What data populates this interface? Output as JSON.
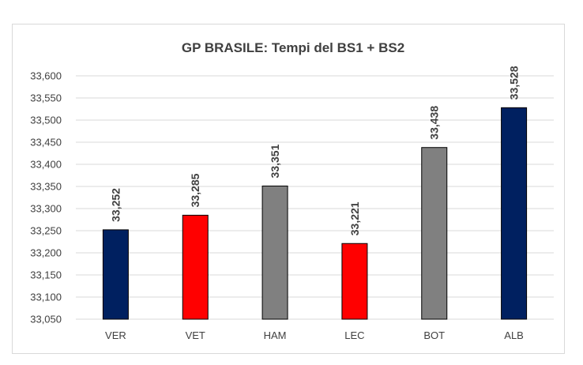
{
  "chart_data": {
    "type": "bar",
    "title": "GP BRASILE: Tempi del BS1 + BS2",
    "xlabel": "",
    "ylabel": "",
    "categories": [
      "VER",
      "VET",
      "HAM",
      "LEC",
      "BOT",
      "ALB"
    ],
    "values": [
      33.252,
      33.285,
      33.351,
      33.221,
      33.438,
      33.528
    ],
    "value_labels": [
      "33,252",
      "33,285",
      "33,351",
      "33,221",
      "33,438",
      "33,528"
    ],
    "bar_colors": [
      "#002060",
      "#ff0000",
      "#808080",
      "#ff0000",
      "#808080",
      "#002060"
    ],
    "ylim": [
      33.05,
      33.6
    ],
    "y_ticks": [
      33.05,
      33.1,
      33.15,
      33.2,
      33.25,
      33.3,
      33.35,
      33.4,
      33.45,
      33.5,
      33.55,
      33.6
    ],
    "y_tick_labels": [
      "33,050",
      "33,100",
      "33,150",
      "33,200",
      "33,250",
      "33,300",
      "33,350",
      "33,400",
      "33,450",
      "33,500",
      "33,550",
      "33,600"
    ],
    "grid": true,
    "legend": "none"
  }
}
